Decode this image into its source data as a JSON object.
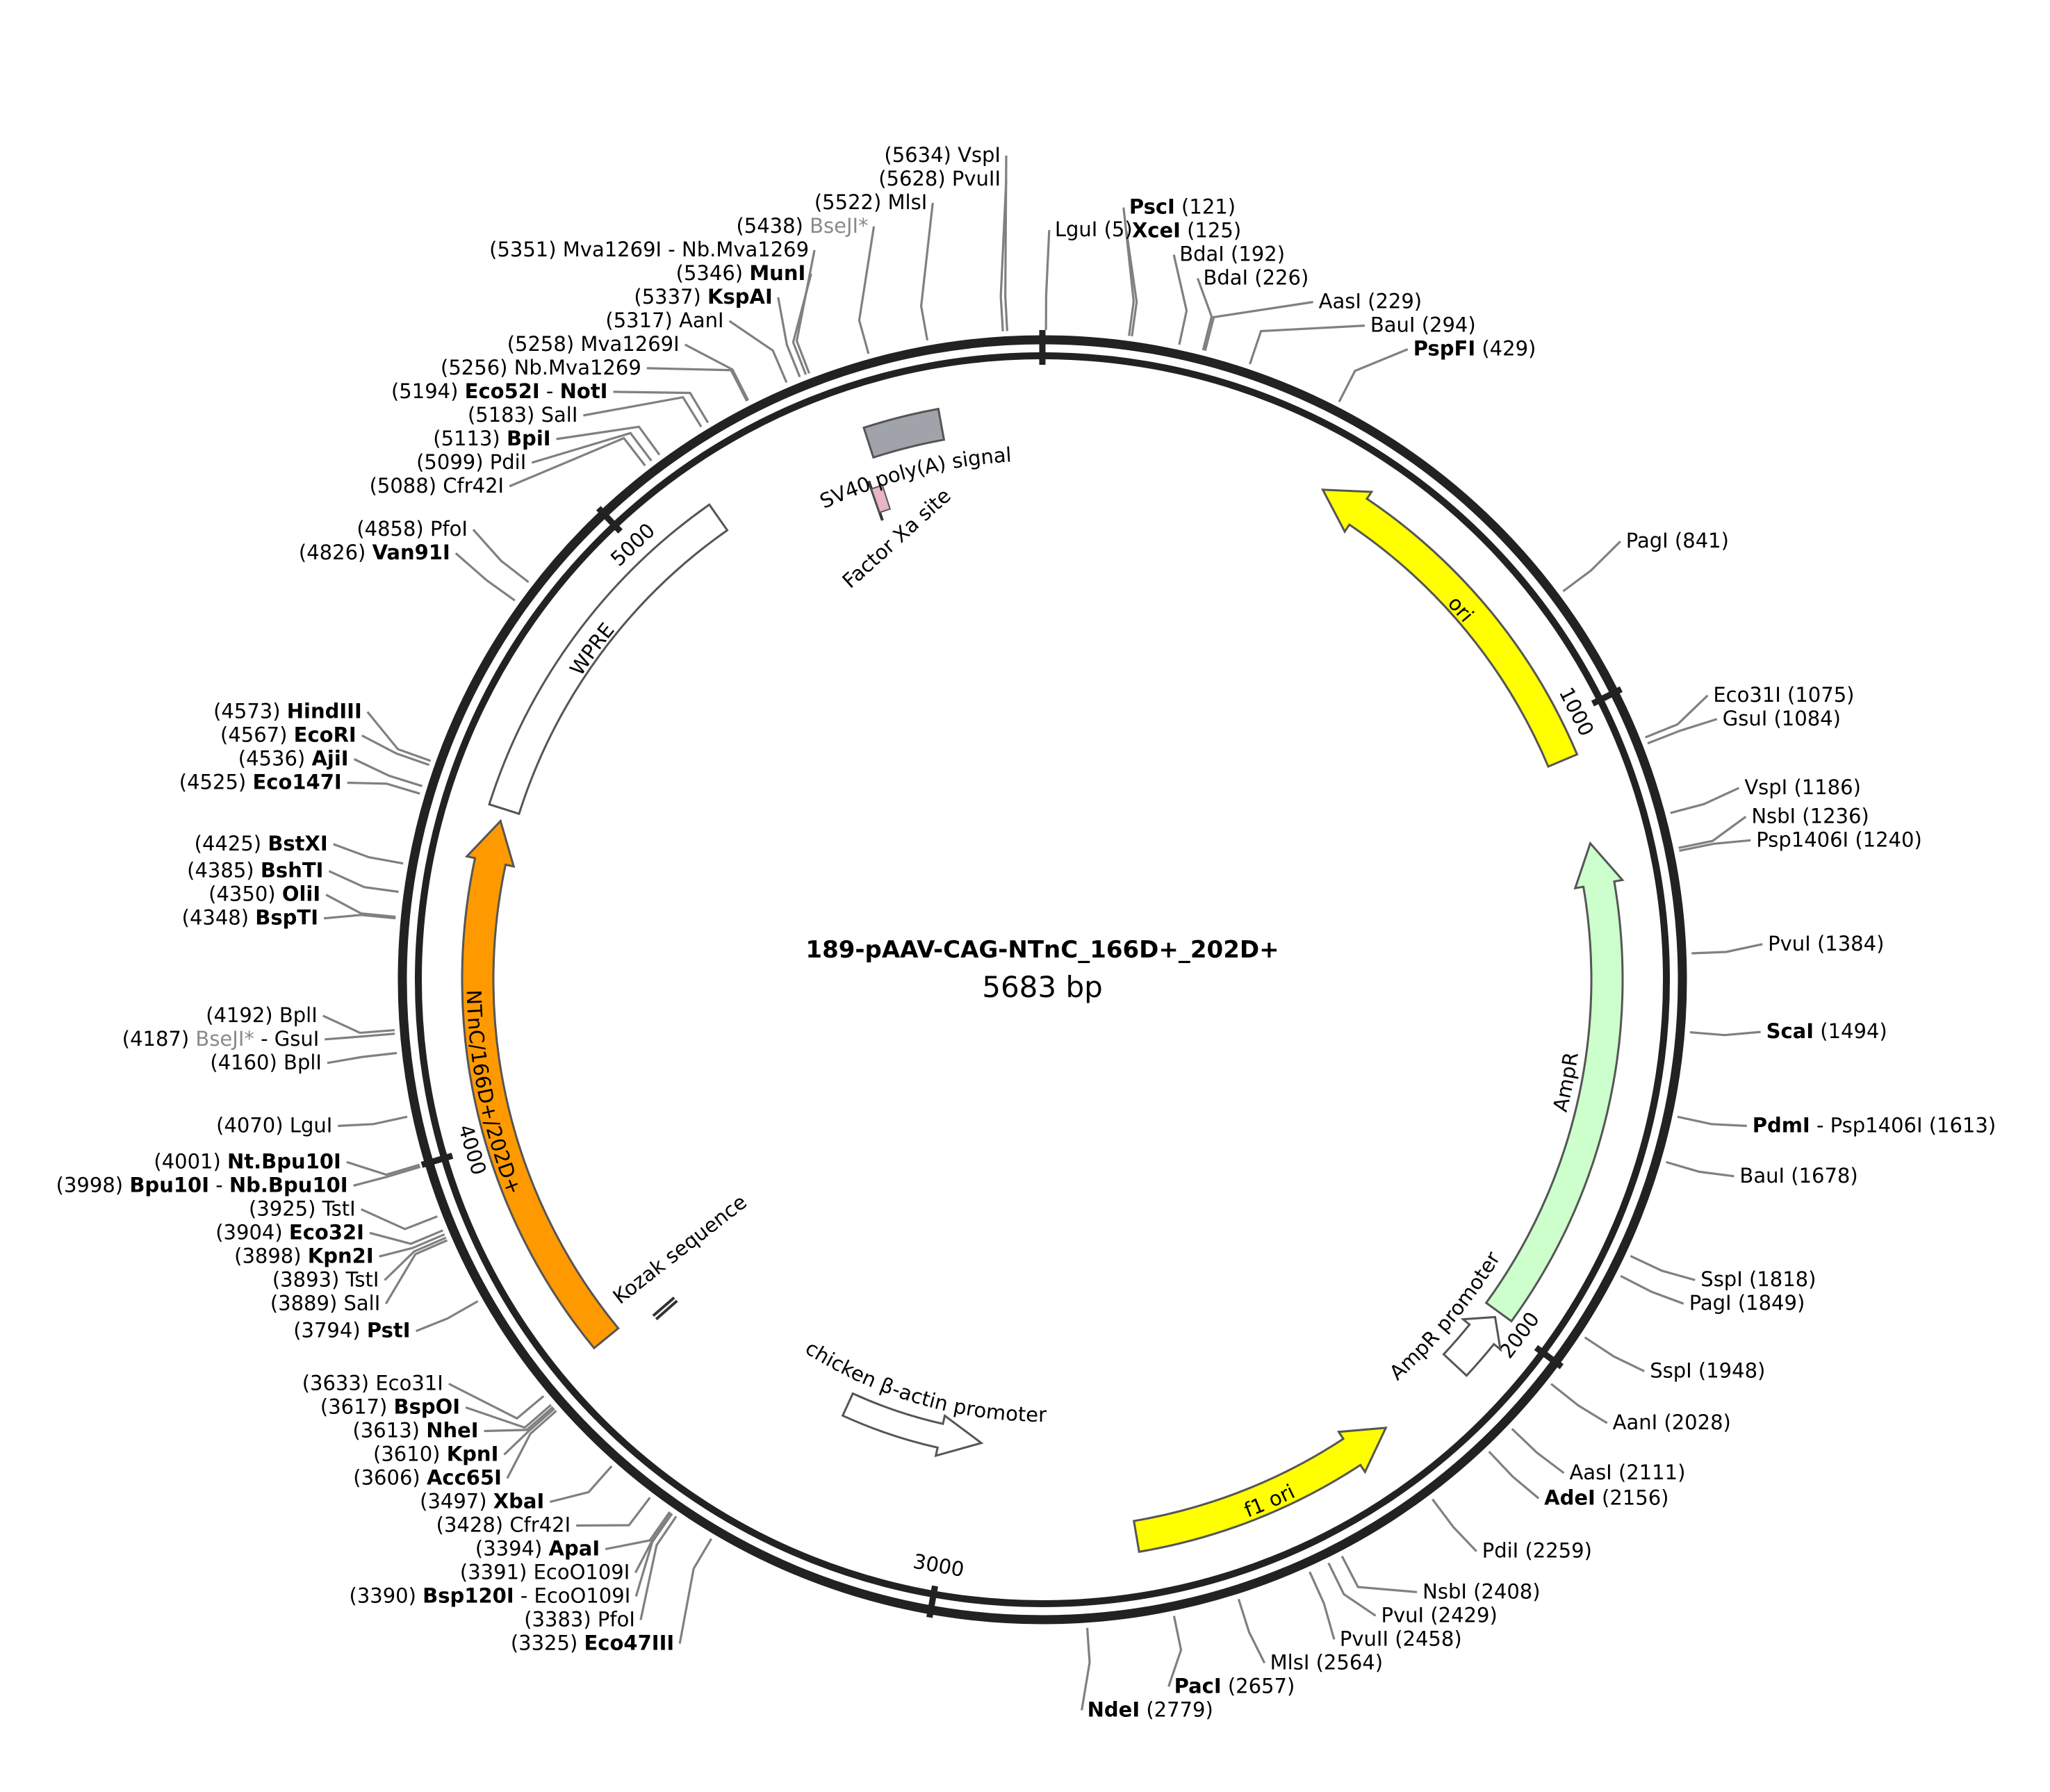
{
  "plasmid": {
    "name": "189-pAAV-CAG-NTnC_166D+_202D+",
    "size_label": "5683 bp",
    "length": 5683
  },
  "ticks": [
    {
      "pos": 1000,
      "label": "1000"
    },
    {
      "pos": 2000,
      "label": "2000"
    },
    {
      "pos": 3000,
      "label": "3000"
    },
    {
      "pos": 4000,
      "label": "4000"
    },
    {
      "pos": 5000,
      "label": "5000"
    }
  ],
  "features": [
    {
      "name": "ori",
      "start": 470,
      "end": 1060,
      "direction": "reverse",
      "color": "#ffff00",
      "track": "outer"
    },
    {
      "name": "AmpR",
      "start": 1200,
      "end": 1990,
      "direction": "reverse",
      "color": "#ccffcc",
      "track": "outer"
    },
    {
      "name": "AmpR promoter",
      "start": 2000,
      "end": 2100,
      "direction": "reverse",
      "color": "#ffffff",
      "track": "outer"
    },
    {
      "name": "f1 ori",
      "start": 2250,
      "end": 2690,
      "direction": "reverse",
      "color": "#ffff00",
      "track": "outer"
    },
    {
      "name": "chicken β-actin promoter",
      "start": 2960,
      "end": 3230,
      "direction": "reverse",
      "color": "#ffffff",
      "track": "inner"
    },
    {
      "name": "Kozak sequence",
      "start": 3610,
      "end": 3625,
      "direction": "none",
      "color": "#ffffff",
      "track": "inner"
    },
    {
      "name": "NTnC/166D+/202D+",
      "start": 3640,
      "end": 4520,
      "direction": "forward",
      "color": "#ff9900",
      "track": "outer"
    },
    {
      "name": "WPRE",
      "start": 4540,
      "end": 5130,
      "direction": "none",
      "color": "#ffffff",
      "track": "outer"
    },
    {
      "name": "Factor Xa site",
      "start": 5380,
      "end": 5400,
      "direction": "none",
      "color": "#e8b4c8",
      "track": "inner"
    },
    {
      "name": "SV40 poly(A) signal",
      "start": 5400,
      "end": 5520,
      "direction": "none",
      "color": "#a0a4aa",
      "track": "outer"
    }
  ],
  "sites": [
    {
      "pos": 5634,
      "name": "VspI"
    },
    {
      "pos": 5628,
      "name": "PvuII"
    },
    {
      "pos": 5522,
      "name": "MlsI"
    },
    {
      "pos": 5438,
      "name": "BseJI*"
    },
    {
      "pos": 5351,
      "name": "Mva1269I - Nb.Mva1269"
    },
    {
      "pos": 5346,
      "name": "MunI"
    },
    {
      "pos": 5337,
      "name": "KspAI"
    },
    {
      "pos": 5317,
      "name": "AanI"
    },
    {
      "pos": 5258,
      "name": "Mva1269I"
    },
    {
      "pos": 5256,
      "name": "Nb.Mva1269"
    },
    {
      "pos": 5194,
      "name": "Eco52I - NotI"
    },
    {
      "pos": 5183,
      "name": "SalI"
    },
    {
      "pos": 5113,
      "name": "BpiI"
    },
    {
      "pos": 5099,
      "name": "PdiI"
    },
    {
      "pos": 5088,
      "name": "Cfr42I"
    },
    {
      "pos": 4858,
      "name": "PfoI"
    },
    {
      "pos": 4826,
      "name": "Van91I"
    },
    {
      "pos": 4573,
      "name": "HindIII"
    },
    {
      "pos": 4567,
      "name": "EcoRI"
    },
    {
      "pos": 4536,
      "name": "AjiI"
    },
    {
      "pos": 4525,
      "name": "Eco147I"
    },
    {
      "pos": 4425,
      "name": "BstXI"
    },
    {
      "pos": 4385,
      "name": "BshTI"
    },
    {
      "pos": 4350,
      "name": "OliI"
    },
    {
      "pos": 4348,
      "name": "BspTI"
    },
    {
      "pos": 4192,
      "name": "BplI"
    },
    {
      "pos": 4187,
      "name": "BseJI* - GsuI"
    },
    {
      "pos": 4160,
      "name": "BplI"
    },
    {
      "pos": 4070,
      "name": "LguI"
    },
    {
      "pos": 4001,
      "name": "Nt.Bpu10I"
    },
    {
      "pos": 3998,
      "name": "Bpu10I - Nb.Bpu10I"
    },
    {
      "pos": 3925,
      "name": "TstI"
    },
    {
      "pos": 3904,
      "name": "Eco32I"
    },
    {
      "pos": 3898,
      "name": "Kpn2I"
    },
    {
      "pos": 3893,
      "name": "TstI"
    },
    {
      "pos": 3889,
      "name": "SalI"
    },
    {
      "pos": 3794,
      "name": "PstI"
    },
    {
      "pos": 3633,
      "name": "Eco31I"
    },
    {
      "pos": 3617,
      "name": "BspOI"
    },
    {
      "pos": 3613,
      "name": "NheI"
    },
    {
      "pos": 3610,
      "name": "KpnI"
    },
    {
      "pos": 3606,
      "name": "Acc65I"
    },
    {
      "pos": 3497,
      "name": "XbaI"
    },
    {
      "pos": 3428,
      "name": "Cfr42I"
    },
    {
      "pos": 3394,
      "name": "ApaI"
    },
    {
      "pos": 3391,
      "name": "EcoO109I"
    },
    {
      "pos": 3390,
      "name": "Bsp120I - EcoO109I"
    },
    {
      "pos": 3383,
      "name": "PfoI"
    },
    {
      "pos": 3325,
      "name": "Eco47III"
    },
    {
      "pos": 5,
      "name": "LguI"
    },
    {
      "pos": 121,
      "name": "PscI"
    },
    {
      "pos": 125,
      "name": "XceI"
    },
    {
      "pos": 192,
      "name": "BdaI"
    },
    {
      "pos": 226,
      "name": "BdaI"
    },
    {
      "pos": 229,
      "name": "AasI"
    },
    {
      "pos": 294,
      "name": "BauI"
    },
    {
      "pos": 429,
      "name": "PspFI"
    },
    {
      "pos": 841,
      "name": "PagI"
    },
    {
      "pos": 1075,
      "name": "Eco31I"
    },
    {
      "pos": 1084,
      "name": "GsuI"
    },
    {
      "pos": 1186,
      "name": "VspI"
    },
    {
      "pos": 1236,
      "name": "NsbI"
    },
    {
      "pos": 1240,
      "name": "Psp1406I"
    },
    {
      "pos": 1384,
      "name": "PvuI"
    },
    {
      "pos": 1494,
      "name": "ScaI"
    },
    {
      "pos": 1613,
      "name": "PdmI - Psp1406I"
    },
    {
      "pos": 1678,
      "name": "BauI"
    },
    {
      "pos": 1818,
      "name": "SspI"
    },
    {
      "pos": 1849,
      "name": "PagI"
    },
    {
      "pos": 1948,
      "name": "SspI"
    },
    {
      "pos": 2028,
      "name": "AanI"
    },
    {
      "pos": 2111,
      "name": "AasI"
    },
    {
      "pos": 2156,
      "name": "AdeI"
    },
    {
      "pos": 2259,
      "name": "PdiI"
    },
    {
      "pos": 2408,
      "name": "NsbI"
    },
    {
      "pos": 2429,
      "name": "PvuI"
    },
    {
      "pos": 2458,
      "name": "PvuII"
    },
    {
      "pos": 2564,
      "name": "MlsI"
    },
    {
      "pos": 2657,
      "name": "PacI"
    },
    {
      "pos": 2779,
      "name": "NdeI"
    }
  ]
}
